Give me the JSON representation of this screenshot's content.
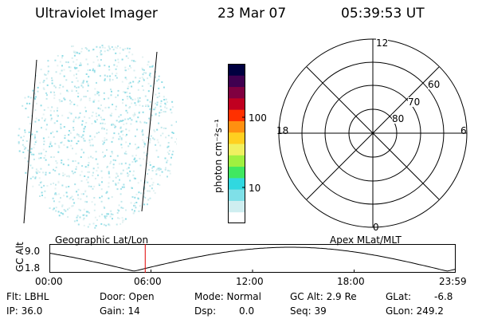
{
  "header": {
    "title": "Ultraviolet Imager",
    "date": "23 Mar 07",
    "time": "05:39:53 UT"
  },
  "colorbar": {
    "label": "photon cm⁻²s⁻¹",
    "tick_100": "100",
    "tick_10": "10",
    "colors": [
      "#ffffff",
      "#cfeef0",
      "#7fe0e8",
      "#30d8e0",
      "#40e860",
      "#a0f040",
      "#f0f060",
      "#ffd020",
      "#ff9010",
      "#ff3000",
      "#c00020",
      "#800040",
      "#400050",
      "#000040"
    ]
  },
  "polar": {
    "mlt_12": "12",
    "mlt_18": "18",
    "mlt_6": "6",
    "mlt_0": "0",
    "lat_60": "60",
    "lat_70": "70",
    "lat_80": "80"
  },
  "altitude_plot": {
    "left_title": "Geographic Lat/Lon",
    "right_title": "Apex MLat/MLT",
    "ylabel": "GC Alt",
    "y_top": "9.0",
    "y_bottom": "1.8",
    "x_ticks": [
      "00:00",
      "06:00",
      "12:00",
      "18:00",
      "23:59"
    ],
    "marker_hour": 5.66,
    "marker_color": "#e00000"
  },
  "info": {
    "flt": "Flt: LBHL",
    "ip": "IP: 36.0",
    "door": "Door: Open",
    "gain": "Gain: 14",
    "mode": "Mode: Normal",
    "dsp_label": "Dsp:",
    "dsp_value": "0.0",
    "gc_alt": "GC Alt: 2.9 Re",
    "seq": "Seq: 39",
    "glat_label": "GLat:",
    "glat_value": "-6.8",
    "glon": "GLon: 249.2"
  }
}
